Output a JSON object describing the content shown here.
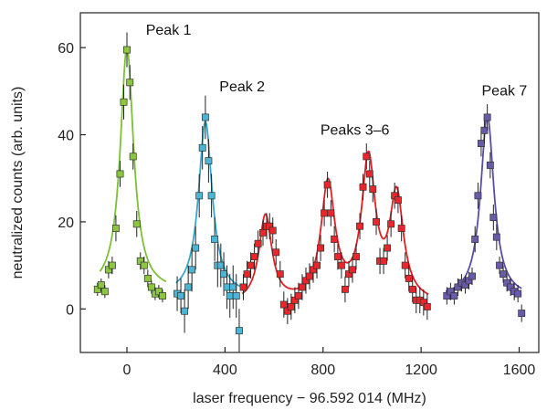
{
  "chart_data": {
    "type": "scatter",
    "xlabel": "laser frequency − 96.592 014  (MHz)",
    "ylabel": "neutralized counts  (arb. units)",
    "xlim": [
      -190,
      1680
    ],
    "ylim": [
      -10,
      68
    ],
    "xticks": [
      0,
      400,
      800,
      1200,
      1600
    ],
    "yticks": [
      0,
      20,
      40,
      60
    ],
    "grid": false,
    "annotations": [
      {
        "text": "Peak 1",
        "x": 170,
        "y": 63
      },
      {
        "text": "Peak 2",
        "x": 470,
        "y": 50
      },
      {
        "text": "Peaks 3–6",
        "x": 930,
        "y": 40
      },
      {
        "text": "Peak 7",
        "x": 1540,
        "y": 49
      }
    ],
    "series": [
      {
        "color": "#8cc63f",
        "fit_color": "#7cc035",
        "fit": {
          "type": "lorentz",
          "baseline": 4,
          "peaks": [
            {
              "center": 0,
              "amp": 56,
              "hw": 33
            }
          ],
          "range": [
            -110,
            160
          ]
        },
        "points": [
          {
            "x": -120,
            "y": 4.5,
            "e": 1.5
          },
          {
            "x": -105,
            "y": 5.5,
            "e": 1.5
          },
          {
            "x": -90,
            "y": 4,
            "e": 1.5
          },
          {
            "x": -75,
            "y": 9,
            "e": 2
          },
          {
            "x": -60,
            "y": 10,
            "e": 2
          },
          {
            "x": -45,
            "y": 18.5,
            "e": 3
          },
          {
            "x": -28,
            "y": 31,
            "e": 3
          },
          {
            "x": -13,
            "y": 47.5,
            "e": 4
          },
          {
            "x": 0,
            "y": 59.5,
            "e": 4
          },
          {
            "x": 12,
            "y": 52,
            "e": 4
          },
          {
            "x": 25,
            "y": 35,
            "e": 3
          },
          {
            "x": 40,
            "y": 19.5,
            "e": 3
          },
          {
            "x": 55,
            "y": 11,
            "e": 2
          },
          {
            "x": 70,
            "y": 10,
            "e": 2
          },
          {
            "x": 85,
            "y": 7,
            "e": 2
          },
          {
            "x": 100,
            "y": 5,
            "e": 1.5
          },
          {
            "x": 115,
            "y": 3.5,
            "e": 1.5
          },
          {
            "x": 130,
            "y": 4,
            "e": 1.5
          },
          {
            "x": 145,
            "y": 3,
            "e": 1.5
          }
        ]
      },
      {
        "color": "#4ab5d6",
        "fit_color": "#35a9cc",
        "fit": {
          "type": "lorentz",
          "baseline": 3,
          "peaks": [
            {
              "center": 320,
              "amp": 40,
              "hw": 34
            }
          ],
          "range": [
            200,
            460
          ]
        },
        "points": [
          {
            "x": 205,
            "y": 3.5,
            "e": 4
          },
          {
            "x": 220,
            "y": 3,
            "e": 4
          },
          {
            "x": 235,
            "y": -0.5,
            "e": 5
          },
          {
            "x": 250,
            "y": 5,
            "e": 5
          },
          {
            "x": 265,
            "y": 9,
            "e": 5
          },
          {
            "x": 280,
            "y": 14,
            "e": 5
          },
          {
            "x": 295,
            "y": 26,
            "e": 5
          },
          {
            "x": 308,
            "y": 37,
            "e": 5
          },
          {
            "x": 320,
            "y": 44,
            "e": 5
          },
          {
            "x": 333,
            "y": 34,
            "e": 5
          },
          {
            "x": 345,
            "y": 26,
            "e": 5
          },
          {
            "x": 358,
            "y": 16,
            "e": 5
          },
          {
            "x": 370,
            "y": 10,
            "e": 5
          },
          {
            "x": 383,
            "y": 10,
            "e": 5
          },
          {
            "x": 395,
            "y": 8,
            "e": 5
          },
          {
            "x": 408,
            "y": 5,
            "e": 5
          },
          {
            "x": 420,
            "y": 3,
            "e": 5
          },
          {
            "x": 433,
            "y": 5,
            "e": 5
          },
          {
            "x": 446,
            "y": 3,
            "e": 5
          },
          {
            "x": 458,
            "y": -5,
            "e": 5
          }
        ]
      },
      {
        "color": "#e8262b",
        "fit_color": "#e02025",
        "fit": {
          "type": "lorentz",
          "baseline": 1,
          "peaks": [
            {
              "center": 565,
              "amp": 20,
              "hw": 32
            },
            {
              "center": 820,
              "amp": 27,
              "hw": 35
            },
            {
              "center": 985,
              "amp": 32,
              "hw": 34
            },
            {
              "center": 1100,
              "amp": 24,
              "hw": 34
            }
          ],
          "range": [
            470,
            1230
          ]
        },
        "points": [
          {
            "x": 475,
            "y": 5,
            "e": 3
          },
          {
            "x": 490,
            "y": 8,
            "e": 3
          },
          {
            "x": 505,
            "y": 10,
            "e": 3
          },
          {
            "x": 520,
            "y": 12,
            "e": 3
          },
          {
            "x": 535,
            "y": 15,
            "e": 3
          },
          {
            "x": 555,
            "y": 17.5,
            "e": 3
          },
          {
            "x": 570,
            "y": 19,
            "e": 3
          },
          {
            "x": 582,
            "y": 19,
            "e": 3
          },
          {
            "x": 595,
            "y": 18,
            "e": 3
          },
          {
            "x": 608,
            "y": 13,
            "e": 3
          },
          {
            "x": 625,
            "y": 8,
            "e": 3
          },
          {
            "x": 640,
            "y": 1,
            "e": 3
          },
          {
            "x": 655,
            "y": -0.5,
            "e": 3
          },
          {
            "x": 670,
            "y": 0.5,
            "e": 3
          },
          {
            "x": 685,
            "y": 2,
            "e": 3
          },
          {
            "x": 700,
            "y": 3,
            "e": 3
          },
          {
            "x": 715,
            "y": 5,
            "e": 3
          },
          {
            "x": 730,
            "y": 6.5,
            "e": 3
          },
          {
            "x": 745,
            "y": 7.5,
            "e": 3
          },
          {
            "x": 760,
            "y": 9,
            "e": 3
          },
          {
            "x": 775,
            "y": 10,
            "e": 3
          },
          {
            "x": 790,
            "y": 14,
            "e": 3
          },
          {
            "x": 805,
            "y": 22,
            "e": 3
          },
          {
            "x": 818,
            "y": 28.5,
            "e": 3
          },
          {
            "x": 832,
            "y": 22,
            "e": 3
          },
          {
            "x": 846,
            "y": 16,
            "e": 3
          },
          {
            "x": 860,
            "y": 12,
            "e": 3
          },
          {
            "x": 875,
            "y": 10,
            "e": 3
          },
          {
            "x": 890,
            "y": 4.5,
            "e": 3
          },
          {
            "x": 905,
            "y": 8,
            "e": 3
          },
          {
            "x": 920,
            "y": 9,
            "e": 3
          },
          {
            "x": 935,
            "y": 12,
            "e": 3
          },
          {
            "x": 950,
            "y": 19,
            "e": 3
          },
          {
            "x": 963,
            "y": 28,
            "e": 3
          },
          {
            "x": 977,
            "y": 35,
            "e": 3
          },
          {
            "x": 990,
            "y": 31,
            "e": 3
          },
          {
            "x": 1003,
            "y": 27.5,
            "e": 3
          },
          {
            "x": 1017,
            "y": 20,
            "e": 3
          },
          {
            "x": 1032,
            "y": 11,
            "e": 3
          },
          {
            "x": 1047,
            "y": 11,
            "e": 3
          },
          {
            "x": 1062,
            "y": 14,
            "e": 3
          },
          {
            "x": 1077,
            "y": 19.5,
            "e": 3
          },
          {
            "x": 1092,
            "y": 26,
            "e": 3
          },
          {
            "x": 1106,
            "y": 25,
            "e": 3
          },
          {
            "x": 1120,
            "y": 18.5,
            "e": 3
          },
          {
            "x": 1135,
            "y": 10,
            "e": 3
          },
          {
            "x": 1150,
            "y": 7,
            "e": 3
          },
          {
            "x": 1165,
            "y": 4.5,
            "e": 3
          },
          {
            "x": 1180,
            "y": 2,
            "e": 3
          },
          {
            "x": 1195,
            "y": 2,
            "e": 3
          },
          {
            "x": 1210,
            "y": 1.5,
            "e": 3
          },
          {
            "x": 1225,
            "y": 0.5,
            "e": 3
          }
        ]
      },
      {
        "color": "#6a5aa8",
        "fit_color": "#5a4ea0",
        "fit": {
          "type": "lorentz",
          "baseline": 2.5,
          "peaks": [
            {
              "center": 1470,
              "amp": 42,
              "hw": 33
            }
          ],
          "range": [
            1300,
            1610
          ]
        },
        "points": [
          {
            "x": 1305,
            "y": 3,
            "e": 2
          },
          {
            "x": 1320,
            "y": 4,
            "e": 2
          },
          {
            "x": 1335,
            "y": 3,
            "e": 2
          },
          {
            "x": 1350,
            "y": 5,
            "e": 2
          },
          {
            "x": 1365,
            "y": 6,
            "e": 2
          },
          {
            "x": 1380,
            "y": 5.5,
            "e": 2
          },
          {
            "x": 1395,
            "y": 6.5,
            "e": 2
          },
          {
            "x": 1408,
            "y": 7.5,
            "e": 2
          },
          {
            "x": 1420,
            "y": 16,
            "e": 3
          },
          {
            "x": 1432,
            "y": 26,
            "e": 3
          },
          {
            "x": 1445,
            "y": 38,
            "e": 3
          },
          {
            "x": 1458,
            "y": 41,
            "e": 3
          },
          {
            "x": 1470,
            "y": 44,
            "e": 3
          },
          {
            "x": 1482,
            "y": 33,
            "e": 3
          },
          {
            "x": 1495,
            "y": 21,
            "e": 3
          },
          {
            "x": 1508,
            "y": 16.5,
            "e": 3
          },
          {
            "x": 1520,
            "y": 10,
            "e": 2
          },
          {
            "x": 1535,
            "y": 8,
            "e": 2
          },
          {
            "x": 1550,
            "y": 6,
            "e": 2
          },
          {
            "x": 1565,
            "y": 5,
            "e": 2
          },
          {
            "x": 1580,
            "y": 4,
            "e": 2
          },
          {
            "x": 1595,
            "y": 3.5,
            "e": 2
          },
          {
            "x": 1610,
            "y": -1,
            "e": 2
          }
        ]
      }
    ]
  }
}
